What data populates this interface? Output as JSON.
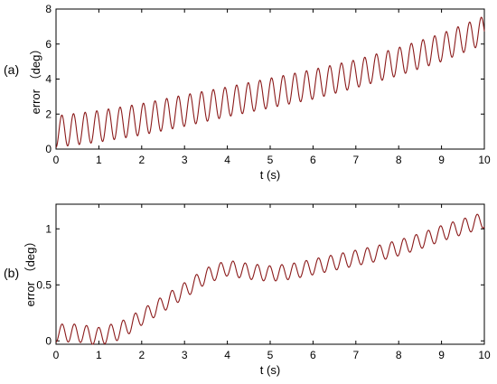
{
  "chart_data": [
    {
      "type": "line",
      "panel_label": "(a)",
      "xlabel": "t (s)",
      "ylabel": "error （deg）",
      "xlim": [
        0,
        10
      ],
      "ylim": [
        0,
        8
      ],
      "xticks": [
        "0",
        "1",
        "2",
        "3",
        "4",
        "5",
        "6",
        "7",
        "8",
        "9",
        "10"
      ],
      "yticks": [
        "0",
        "2",
        "4",
        "6",
        "8"
      ],
      "grid": false,
      "line_color": "#8b1a1a",
      "x": [
        0,
        1,
        2,
        3,
        4,
        5,
        6,
        7,
        8,
        9,
        10
      ],
      "y": [
        1.0,
        1.3,
        1.7,
        2.2,
        2.7,
        3.2,
        3.7,
        4.3,
        5.0,
        5.8,
        6.8
      ],
      "oscillation": {
        "amplitude": [
          0.9,
          0.9,
          0.9,
          0.9,
          0.85,
          0.85,
          0.85,
          0.8,
          0.8,
          0.8,
          0.8
        ],
        "period": 0.272
      }
    },
    {
      "type": "line",
      "panel_label": "(b)",
      "xlabel": "t (s)",
      "ylabel": "error （deg）",
      "xlim": [
        0,
        10
      ],
      "ylim": [
        -0.03,
        1.22
      ],
      "xticks": [
        "0",
        "1",
        "2",
        "3",
        "4",
        "5",
        "6",
        "7",
        "8",
        "9",
        "10"
      ],
      "yticks": [
        "0",
        "0.5",
        "1"
      ],
      "ytick_values": [
        0,
        0.5,
        1
      ],
      "grid": false,
      "line_color": "#8b1a1a",
      "x": [
        0,
        0.5,
        1.0,
        1.5,
        2.0,
        2.5,
        3.0,
        3.5,
        4.0,
        4.5,
        5.0,
        5.5,
        6.0,
        6.5,
        7.0,
        7.5,
        8.0,
        8.5,
        9.0,
        9.5,
        10.0
      ],
      "y": [
        0.07,
        0.07,
        0.04,
        0.09,
        0.21,
        0.33,
        0.45,
        0.58,
        0.65,
        0.62,
        0.6,
        0.62,
        0.66,
        0.7,
        0.74,
        0.78,
        0.83,
        0.89,
        0.96,
        1.02,
        1.08
      ],
      "oscillation": {
        "amplitude": [
          0.08,
          0.08,
          0.08,
          0.08,
          0.07,
          0.07,
          0.07,
          0.07,
          0.07,
          0.07,
          0.07,
          0.07,
          0.07,
          0.07,
          0.07,
          0.07,
          0.07,
          0.07,
          0.07,
          0.07,
          0.07
        ],
        "period": 0.285
      }
    }
  ]
}
